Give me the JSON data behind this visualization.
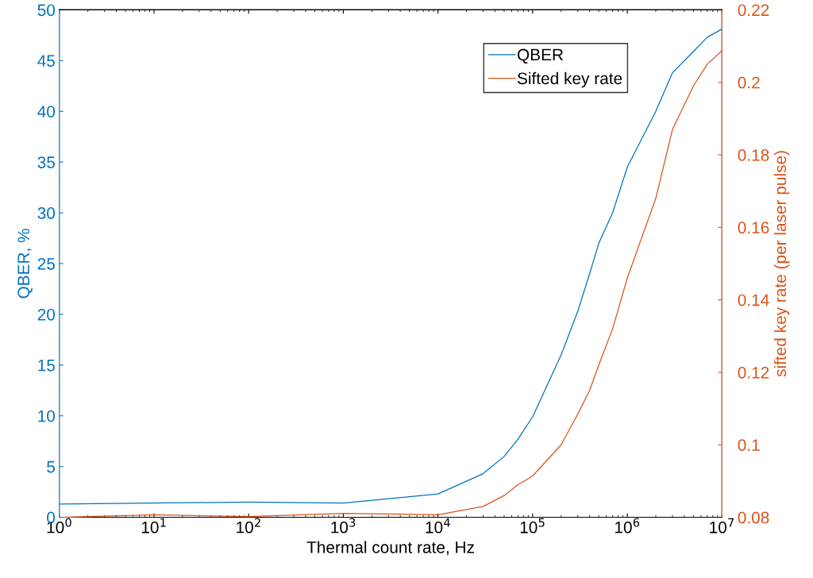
{
  "chart_data": {
    "type": "line",
    "xlabel": "Thermal count rate, Hz",
    "ylabel": "QBER, %",
    "y2label": "sifted key rate (per laser pulse)",
    "log": "x",
    "grid": false,
    "legend": "top right",
    "marker": "none",
    "line_style": "solid",
    "xlim": [
      1,
      10000000
    ],
    "xticks": [
      {
        "value": 1,
        "label": "10$^{0}$"
      },
      {
        "value": 10,
        "label": "10$^{1}$"
      },
      {
        "value": 100,
        "label": "10$^{2}$"
      },
      {
        "value": 1000,
        "label": "10$^{3}$"
      },
      {
        "value": 10000,
        "label": "10$^{4}$"
      },
      {
        "value": 100000,
        "label": "10$^{5}$"
      },
      {
        "value": 1000000,
        "label": "10$^{6}$"
      },
      {
        "value": 10000000,
        "label": "10$^{7}$"
      }
    ],
    "ylim": [
      0,
      50
    ],
    "yticks": [
      0,
      5,
      10,
      15,
      20,
      25,
      30,
      35,
      40,
      45,
      50
    ],
    "y2lim": [
      0.08,
      0.22
    ],
    "y2ticks": [
      0.08,
      0.1,
      0.12,
      0.14,
      0.16,
      0.18,
      0.2,
      0.22
    ],
    "series": [
      {
        "name": "QBER",
        "color": "#0072bd",
        "x": [
          1,
          100,
          1000,
          10000,
          30000,
          50000,
          70000,
          100000,
          200000,
          300000,
          400000,
          500000,
          700000,
          1000000,
          2000000,
          3000000,
          5000000,
          7000000,
          10000000
        ],
        "values": [
          1.3,
          1.5,
          1.4,
          2.3,
          4.3,
          6.0,
          7.7,
          9.9,
          16.0,
          20.3,
          24.0,
          27.0,
          30.0,
          34.5,
          40.0,
          43.8,
          45.9,
          47.3,
          48.1
        ]
      },
      {
        "name": "Sifted key rate",
        "color": "#d95319",
        "axis": "y2",
        "x": [
          1,
          10,
          100,
          1000,
          10000,
          30000,
          50000,
          70000,
          100000,
          200000,
          300000,
          400000,
          500000,
          700000,
          1000000,
          2000000,
          3000000,
          5000000,
          7000000,
          10000000
        ],
        "values": [
          0.08,
          0.0807,
          0.0802,
          0.0811,
          0.0807,
          0.083,
          0.086,
          0.089,
          0.0914,
          0.1,
          0.1085,
          0.115,
          0.122,
          0.132,
          0.146,
          0.168,
          0.187,
          0.199,
          0.205,
          0.2087
        ]
      }
    ]
  }
}
